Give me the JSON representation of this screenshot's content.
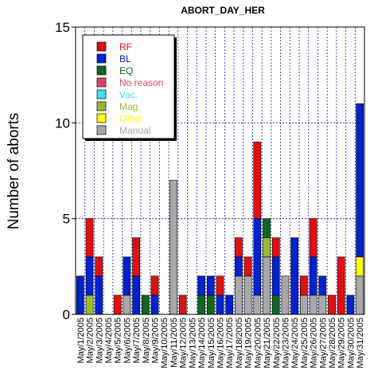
{
  "chart_data": {
    "type": "bar",
    "stacked": true,
    "title": "ABORT_DAY_HER",
    "xlabel": "",
    "ylabel": "Number of aborts",
    "ylim": [
      0,
      15
    ],
    "yticks": [
      0,
      5,
      10,
      15
    ],
    "grid": true,
    "legend_position": "top-left",
    "categories": [
      "May/1/2005",
      "May/2/2005",
      "May/3/2005",
      "May/4/2005",
      "May/5/2005",
      "May/6/2005",
      "May/7/2005",
      "May/8/2005",
      "May/9/2005",
      "May/10/2005",
      "May/11/2005",
      "May/12/2005",
      "May/13/2005",
      "May/14/2005",
      "May/15/2005",
      "May/16/2005",
      "May/17/2005",
      "May/18/2005",
      "May/19/2005",
      "May/20/2005",
      "May/21/2005",
      "May/22/2005",
      "May/23/2005",
      "May/24/2005",
      "May/25/2005",
      "May/26/2005",
      "May/27/2005",
      "May/28/2005",
      "May/29/2005",
      "May/30/2005",
      "May/31/2005"
    ],
    "series": [
      {
        "name": "Manual",
        "color": "#a8a8a8",
        "values": [
          0,
          0,
          0,
          0,
          0,
          1,
          0,
          0,
          0,
          0,
          7,
          0,
          0,
          0,
          0,
          0,
          0,
          2,
          2,
          1,
          3,
          0,
          2,
          0,
          1,
          1,
          1,
          0,
          0,
          0,
          2
        ]
      },
      {
        "name": "Other",
        "color": "#ffff00",
        "values": [
          0,
          0,
          0,
          0,
          0,
          0,
          0,
          0,
          0,
          0,
          0,
          0,
          0,
          0,
          0,
          0,
          0,
          0,
          0,
          0,
          0,
          0,
          0,
          0,
          0,
          0,
          0,
          0,
          0,
          0,
          1
        ]
      },
      {
        "name": "Mag.",
        "color": "#99bb33",
        "values": [
          0,
          1,
          0,
          0,
          0,
          0,
          0,
          0,
          0,
          0,
          0,
          0,
          0,
          0,
          0,
          0,
          0,
          0,
          0,
          0,
          1,
          0,
          0,
          0,
          0,
          0,
          0,
          0,
          0,
          0,
          0
        ]
      },
      {
        "name": "Vac.",
        "color": "#44ddee",
        "values": [
          0,
          0,
          0,
          0,
          0,
          0,
          0,
          0,
          0,
          0,
          0,
          0,
          0,
          0,
          0,
          0,
          0,
          0,
          0,
          0,
          0,
          0,
          0,
          0,
          0,
          0,
          0,
          0,
          0,
          0,
          0
        ]
      },
      {
        "name": "No reason",
        "color": "#dd4466",
        "values": [
          0,
          0,
          0,
          0,
          0,
          0,
          0,
          0,
          0,
          0,
          0,
          0,
          0,
          0,
          0,
          0,
          0,
          0,
          0,
          0,
          0,
          0,
          0,
          0,
          0,
          0,
          0,
          0,
          0,
          0,
          0
        ]
      },
      {
        "name": "EQ",
        "color": "#116622",
        "values": [
          0,
          0,
          0,
          0,
          0,
          0,
          0,
          1,
          0,
          0,
          0,
          0,
          0,
          1,
          1,
          0,
          0,
          0,
          0,
          0,
          1,
          1,
          0,
          0,
          0,
          0,
          0,
          0,
          0,
          0,
          0
        ]
      },
      {
        "name": "BL",
        "color": "#0022cc",
        "values": [
          2,
          2,
          2,
          0,
          0,
          2,
          2,
          0,
          1,
          0,
          0,
          0,
          0,
          1,
          1,
          1,
          1,
          1,
          0,
          4,
          0,
          2,
          0,
          4,
          0,
          2,
          1,
          0,
          0,
          1,
          8
        ]
      },
      {
        "name": "RF",
        "color": "#dd1111",
        "values": [
          0,
          2,
          1,
          0,
          1,
          0,
          2,
          0,
          1,
          0,
          0,
          1,
          0,
          0,
          0,
          1,
          0,
          1,
          1,
          4,
          0,
          1,
          0,
          0,
          1,
          2,
          0,
          1,
          3,
          0,
          0
        ]
      }
    ],
    "legend_order": [
      "RF",
      "BL",
      "EQ",
      "No reason",
      "Vac.",
      "Mag.",
      "Other",
      "Manual"
    ]
  }
}
